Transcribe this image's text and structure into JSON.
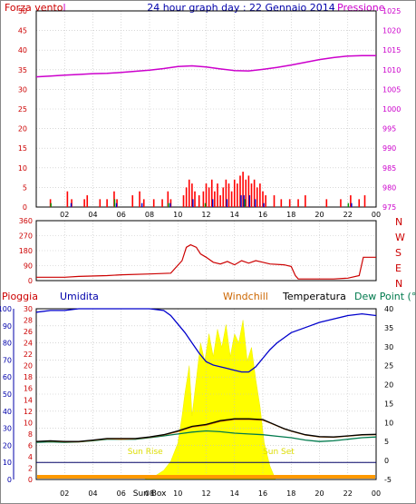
{
  "header": {
    "left_label": "Forza vento",
    "left_label_unit": "l",
    "title": "24 hour graph day : 22 Gennaio 2014",
    "right_label": "Pressione"
  },
  "panel_direction": {
    "compass_letters": [
      "N",
      "W",
      "S",
      "E",
      "N"
    ]
  },
  "panel_bottom": {
    "labels": {
      "rain": "Pioggia",
      "humidity": "Umidita",
      "windchill": "Windchill",
      "temperature": "Temperatura",
      "dewpoint": "Dew Point (°C"
    },
    "annotations": {
      "sun_rise": "Sun Rise",
      "sun_set": "Sun Set",
      "sun_box": "Sun Box"
    }
  },
  "colors": {
    "wind": "#ff0000",
    "pressure": "#cc00cc",
    "direction": "#cc0000",
    "humidity": "#0000cc",
    "temperature": "#000000",
    "windchill": "#cc6600",
    "dewpoint": "#007a4d",
    "sun": "#ffff00",
    "grid": "#c0c0c0",
    "red_axis": "#cc0000",
    "blue_axis": "#0000aa",
    "black_axis": "#000000",
    "purple_axis": "#cc00cc"
  },
  "chart_data": [
    {
      "type": "bar",
      "name_ref": "wind",
      "x": {
        "ticks": [
          "02",
          "04",
          "06",
          "08",
          "10",
          "12",
          "14",
          "16",
          "18",
          "20",
          "22",
          "00"
        ],
        "range_hours": [
          0,
          24
        ]
      },
      "y_left": {
        "range": [
          0,
          50
        ],
        "ticks": [
          0,
          5,
          10,
          15,
          20,
          25,
          30,
          35,
          40,
          45,
          50
        ]
      },
      "y_right": {
        "range": [
          975,
          1025
        ],
        "ticks": [
          975,
          980,
          985,
          990,
          995,
          1000,
          1005,
          1010,
          1015,
          1020,
          1025
        ]
      },
      "grid": true,
      "wind_gust_spikes": [
        [
          1.0,
          2
        ],
        [
          2.2,
          4
        ],
        [
          2.5,
          2
        ],
        [
          3.4,
          2
        ],
        [
          3.6,
          3
        ],
        [
          4.5,
          2
        ],
        [
          5.0,
          2
        ],
        [
          5.5,
          4
        ],
        [
          5.7,
          2
        ],
        [
          6.8,
          3
        ],
        [
          7.3,
          4
        ],
        [
          7.6,
          2
        ],
        [
          8.3,
          2
        ],
        [
          8.9,
          2
        ],
        [
          9.3,
          4
        ],
        [
          9.5,
          2
        ],
        [
          10.4,
          3
        ],
        [
          10.6,
          5
        ],
        [
          10.8,
          7
        ],
        [
          11.0,
          6
        ],
        [
          11.2,
          4
        ],
        [
          11.5,
          3
        ],
        [
          11.8,
          4
        ],
        [
          12.0,
          6
        ],
        [
          12.2,
          5
        ],
        [
          12.4,
          7
        ],
        [
          12.6,
          4
        ],
        [
          12.8,
          6
        ],
        [
          13.0,
          3
        ],
        [
          13.2,
          5
        ],
        [
          13.4,
          7
        ],
        [
          13.6,
          6
        ],
        [
          13.8,
          4
        ],
        [
          14.0,
          7
        ],
        [
          14.2,
          6
        ],
        [
          14.4,
          8
        ],
        [
          14.6,
          9
        ],
        [
          14.8,
          7
        ],
        [
          15.0,
          8
        ],
        [
          15.2,
          6
        ],
        [
          15.4,
          7
        ],
        [
          15.6,
          5
        ],
        [
          15.8,
          6
        ],
        [
          16.0,
          4
        ],
        [
          16.2,
          3
        ],
        [
          16.8,
          3
        ],
        [
          17.3,
          2
        ],
        [
          17.9,
          2
        ],
        [
          18.5,
          2
        ],
        [
          19.0,
          3
        ],
        [
          20.5,
          2
        ],
        [
          21.5,
          2
        ],
        [
          22.2,
          3
        ],
        [
          22.8,
          2
        ],
        [
          23.2,
          3
        ]
      ],
      "wind_avg_spikes": [
        [
          2.4,
          1
        ],
        [
          5.6,
          1
        ],
        [
          7.4,
          1
        ],
        [
          9.4,
          1
        ],
        [
          11.0,
          2
        ],
        [
          12.4,
          2
        ],
        [
          13.4,
          2
        ],
        [
          14.4,
          3
        ],
        [
          14.6,
          3
        ],
        [
          15.0,
          3
        ],
        [
          15.4,
          2
        ],
        [
          16.0,
          1
        ],
        [
          22.2,
          1
        ]
      ],
      "wind_avg_color_spikes": [
        [
          1.1,
          1
        ],
        [
          5.6,
          2
        ],
        [
          9.4,
          1
        ],
        [
          12.0,
          1
        ],
        [
          14.8,
          2
        ],
        [
          22.1,
          1
        ]
      ],
      "pressure": [
        [
          0,
          1008.2
        ],
        [
          1,
          1008.4
        ],
        [
          2,
          1008.6
        ],
        [
          3,
          1008.8
        ],
        [
          4,
          1009.0
        ],
        [
          5,
          1009.1
        ],
        [
          6,
          1009.3
        ],
        [
          7,
          1009.6
        ],
        [
          8,
          1009.9
        ],
        [
          9,
          1010.3
        ],
        [
          10,
          1010.8
        ],
        [
          11,
          1011.0
        ],
        [
          12,
          1010.7
        ],
        [
          13,
          1010.2
        ],
        [
          14,
          1009.8
        ],
        [
          15,
          1009.7
        ],
        [
          16,
          1010.1
        ],
        [
          17,
          1010.6
        ],
        [
          18,
          1011.2
        ],
        [
          19,
          1011.9
        ],
        [
          20,
          1012.6
        ],
        [
          21,
          1013.1
        ],
        [
          22,
          1013.5
        ],
        [
          23,
          1013.6
        ],
        [
          24,
          1013.6
        ]
      ]
    },
    {
      "type": "line",
      "name_ref": "direction",
      "y_left": {
        "range": [
          0,
          360
        ],
        "ticks": [
          0,
          90,
          180,
          270,
          360
        ]
      },
      "grid": true,
      "direction": [
        [
          0,
          20
        ],
        [
          2,
          20
        ],
        [
          3,
          25
        ],
        [
          5,
          30
        ],
        [
          6,
          35
        ],
        [
          8,
          40
        ],
        [
          9.5,
          45
        ],
        [
          10.3,
          120
        ],
        [
          10.6,
          200
        ],
        [
          10.9,
          215
        ],
        [
          11.3,
          200
        ],
        [
          11.6,
          160
        ],
        [
          12.0,
          140
        ],
        [
          12.5,
          110
        ],
        [
          13.0,
          100
        ],
        [
          13.5,
          115
        ],
        [
          14.0,
          95
        ],
        [
          14.5,
          120
        ],
        [
          15.0,
          105
        ],
        [
          15.5,
          120
        ],
        [
          16.0,
          110
        ],
        [
          16.5,
          100
        ],
        [
          17.5,
          95
        ],
        [
          18.0,
          85
        ],
        [
          18.3,
          30
        ],
        [
          18.5,
          10
        ],
        [
          21.0,
          10
        ],
        [
          22.0,
          15
        ],
        [
          22.8,
          30
        ],
        [
          23.1,
          140
        ],
        [
          24,
          140
        ]
      ]
    },
    {
      "type": "line",
      "name_ref": "climate",
      "y_left_humidity": {
        "range": [
          0,
          100
        ],
        "ticks": [
          0,
          10,
          20,
          30,
          40,
          50,
          60,
          70,
          80,
          90,
          100
        ]
      },
      "y_left_rain": {
        "range": [
          0,
          30
        ],
        "ticks": [
          0,
          2,
          4,
          6,
          8,
          10,
          12,
          14,
          16,
          18,
          20,
          22,
          24,
          26,
          28,
          30
        ]
      },
      "y_right_temp": {
        "range": [
          -5,
          40
        ],
        "ticks": [
          -5,
          0,
          5,
          10,
          15,
          20,
          25,
          30,
          35,
          40
        ]
      },
      "grid": true,
      "humidity": [
        [
          0,
          98
        ],
        [
          1,
          99
        ],
        [
          2,
          99
        ],
        [
          3,
          100
        ],
        [
          4,
          100
        ],
        [
          5,
          100
        ],
        [
          6,
          100
        ],
        [
          7,
          100
        ],
        [
          8,
          100
        ],
        [
          9,
          99
        ],
        [
          9.5,
          96
        ],
        [
          10,
          91
        ],
        [
          10.5,
          86
        ],
        [
          11,
          80
        ],
        [
          11.5,
          74
        ],
        [
          12,
          69
        ],
        [
          12.5,
          67
        ],
        [
          13,
          66
        ],
        [
          13.5,
          65
        ],
        [
          14,
          64
        ],
        [
          14.5,
          63
        ],
        [
          15,
          63
        ],
        [
          15.5,
          66
        ],
        [
          16,
          71
        ],
        [
          16.5,
          76
        ],
        [
          17,
          80
        ],
        [
          17.5,
          83
        ],
        [
          18,
          86
        ],
        [
          19,
          89
        ],
        [
          20,
          92
        ],
        [
          21,
          94
        ],
        [
          22,
          96
        ],
        [
          23,
          97
        ],
        [
          24,
          96
        ]
      ],
      "temperature": [
        [
          0,
          5.0
        ],
        [
          1,
          5.2
        ],
        [
          2,
          5.0
        ],
        [
          3,
          5.0
        ],
        [
          4,
          5.4
        ],
        [
          5,
          5.8
        ],
        [
          6,
          5.8
        ],
        [
          7,
          5.8
        ],
        [
          8,
          6.2
        ],
        [
          9,
          6.8
        ],
        [
          10,
          7.8
        ],
        [
          11,
          9.0
        ],
        [
          12,
          9.5
        ],
        [
          13,
          10.5
        ],
        [
          14,
          11.0
        ],
        [
          15,
          11.0
        ],
        [
          16,
          10.8
        ],
        [
          16.5,
          10.0
        ],
        [
          17,
          9.2
        ],
        [
          17.5,
          8.4
        ],
        [
          18,
          7.8
        ],
        [
          19,
          6.8
        ],
        [
          20,
          6.3
        ],
        [
          21,
          6.2
        ],
        [
          22,
          6.5
        ],
        [
          23,
          6.8
        ],
        [
          24,
          6.9
        ]
      ],
      "windchill": [
        [
          0,
          5.0
        ],
        [
          1,
          5.1
        ],
        [
          2,
          4.9
        ],
        [
          3,
          4.9
        ],
        [
          4,
          5.3
        ],
        [
          5,
          5.7
        ],
        [
          6,
          5.6
        ],
        [
          7,
          5.7
        ],
        [
          8,
          6.1
        ],
        [
          9,
          6.7
        ],
        [
          10,
          7.6
        ],
        [
          11,
          8.8
        ],
        [
          12,
          9.3
        ],
        [
          13,
          10.3
        ],
        [
          14,
          10.8
        ],
        [
          15,
          10.8
        ],
        [
          16,
          10.6
        ],
        [
          16.5,
          9.9
        ],
        [
          17,
          9.1
        ],
        [
          17.5,
          8.3
        ],
        [
          18,
          7.7
        ],
        [
          19,
          6.7
        ],
        [
          20,
          6.2
        ],
        [
          21,
          6.1
        ],
        [
          22,
          6.4
        ],
        [
          23,
          6.7
        ],
        [
          24,
          6.8
        ]
      ],
      "dewpoint": [
        [
          0,
          4.8
        ],
        [
          1,
          4.9
        ],
        [
          2,
          4.8
        ],
        [
          3,
          4.9
        ],
        [
          4,
          5.2
        ],
        [
          5,
          5.6
        ],
        [
          6,
          5.6
        ],
        [
          7,
          5.6
        ],
        [
          8,
          6.0
        ],
        [
          9,
          6.5
        ],
        [
          10,
          7.0
        ],
        [
          11,
          7.5
        ],
        [
          12,
          7.8
        ],
        [
          13,
          7.6
        ],
        [
          14,
          7.2
        ],
        [
          15,
          7.0
        ],
        [
          16,
          6.8
        ],
        [
          17,
          6.4
        ],
        [
          18,
          6.0
        ],
        [
          19,
          5.4
        ],
        [
          20,
          5.0
        ],
        [
          21,
          5.2
        ],
        [
          22,
          5.6
        ],
        [
          23,
          6.0
        ],
        [
          24,
          6.2
        ]
      ],
      "sun_rise_hour": 7.6,
      "sun_set_hour": 16.9,
      "sun_level_humidity": 10,
      "solar": [
        [
          7.6,
          0
        ],
        [
          8.5,
          1
        ],
        [
          9.0,
          2
        ],
        [
          9.5,
          4
        ],
        [
          10.0,
          8
        ],
        [
          10.3,
          14
        ],
        [
          10.5,
          19
        ],
        [
          10.8,
          25
        ],
        [
          11.0,
          14
        ],
        [
          11.3,
          22
        ],
        [
          11.6,
          30
        ],
        [
          11.9,
          26
        ],
        [
          12.2,
          32
        ],
        [
          12.5,
          27
        ],
        [
          12.8,
          33
        ],
        [
          13.1,
          29
        ],
        [
          13.4,
          34
        ],
        [
          13.7,
          27
        ],
        [
          14.0,
          32
        ],
        [
          14.3,
          30
        ],
        [
          14.6,
          35
        ],
        [
          14.9,
          26
        ],
        [
          15.2,
          29
        ],
        [
          15.5,
          22
        ],
        [
          15.8,
          16
        ],
        [
          16.1,
          8
        ],
        [
          16.5,
          3
        ],
        [
          16.9,
          0
        ]
      ]
    }
  ]
}
